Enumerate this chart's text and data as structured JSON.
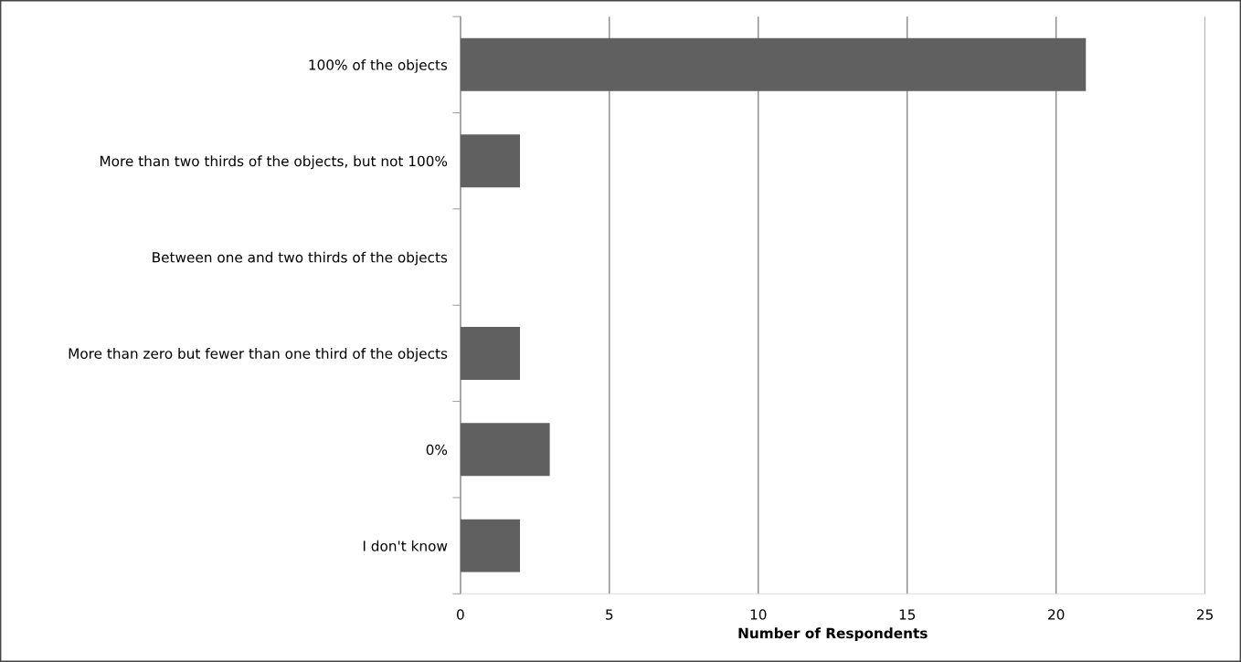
{
  "chart_data": {
    "type": "bar",
    "orientation": "horizontal",
    "xlabel": "Number of Respondents",
    "categories": [
      "100% of the objects",
      "More than two thirds of the objects, but not 100%",
      "Between one and two thirds of the objects",
      "More than zero but fewer than one third of the objects",
      "0%",
      "I don't know"
    ],
    "values": [
      21,
      2,
      0,
      2,
      3,
      2
    ],
    "color": "#606060",
    "xlim": [
      0,
      25
    ],
    "xticks": [
      0,
      5,
      10,
      15,
      20,
      25
    ],
    "grid": "x",
    "legend": false
  }
}
